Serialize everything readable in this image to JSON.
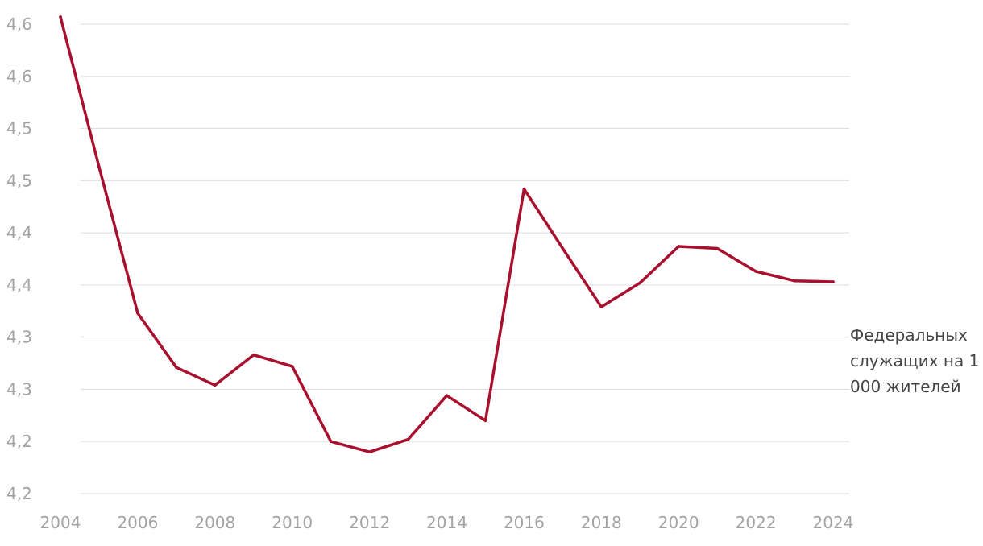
{
  "colors": {
    "series": "#a8102e",
    "grid": "#dedede",
    "tick": "#a3a3a3",
    "label": "#444444"
  },
  "chart_data": {
    "type": "line",
    "title": "",
    "xlabel": "",
    "ylabel": "",
    "xlim": [
      2004,
      2024
    ],
    "ylim": [
      4.15,
      4.6
    ],
    "grid": true,
    "legend": "none",
    "y_ticks": [
      {
        "value": 4.15,
        "label": "4,2"
      },
      {
        "value": 4.2,
        "label": "4,2"
      },
      {
        "value": 4.25,
        "label": "4,3"
      },
      {
        "value": 4.3,
        "label": "4,3"
      },
      {
        "value": 4.35,
        "label": "4,4"
      },
      {
        "value": 4.4,
        "label": "4,4"
      },
      {
        "value": 4.45,
        "label": "4,5"
      },
      {
        "value": 4.5,
        "label": "4,5"
      },
      {
        "value": 4.55,
        "label": "4,6"
      },
      {
        "value": 4.6,
        "label": "4,6"
      }
    ],
    "x_ticks": [
      {
        "value": 2004,
        "label": "2004"
      },
      {
        "value": 2006,
        "label": "2006"
      },
      {
        "value": 2008,
        "label": "2008"
      },
      {
        "value": 2010,
        "label": "2010"
      },
      {
        "value": 2012,
        "label": "2012"
      },
      {
        "value": 2014,
        "label": "2014"
      },
      {
        "value": 2016,
        "label": "2016"
      },
      {
        "value": 2018,
        "label": "2018"
      },
      {
        "value": 2020,
        "label": "2020"
      },
      {
        "value": 2022,
        "label": "2022"
      },
      {
        "value": 2024,
        "label": "2024"
      }
    ],
    "series": [
      {
        "name": "Федеральных служащих на 1 000 жителей",
        "x": [
          2004,
          2005,
          2006,
          2007,
          2008,
          2009,
          2010,
          2011,
          2012,
          2013,
          2014,
          2015,
          2016,
          2017,
          2018,
          2019,
          2020,
          2021,
          2022,
          2023,
          2024
        ],
        "y": [
          4.607,
          4.463,
          4.323,
          4.271,
          4.254,
          4.283,
          4.272,
          4.2,
          4.19,
          4.202,
          4.244,
          4.22,
          4.442,
          4.385,
          4.329,
          4.352,
          4.387,
          4.385,
          4.363,
          4.354,
          4.353
        ]
      }
    ]
  }
}
